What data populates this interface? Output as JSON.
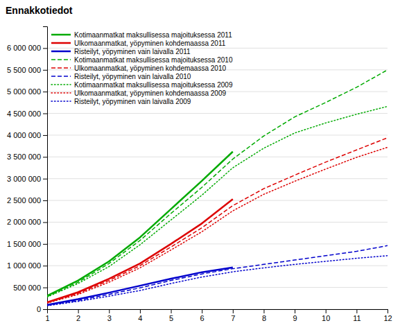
{
  "chart_data": {
    "type": "line",
    "title": "Ennakkotiedot",
    "x": [
      1,
      2,
      3,
      4,
      5,
      6,
      7,
      8,
      9,
      10,
      11,
      12
    ],
    "series": [
      {
        "name": "Kotimaanmatkat maksullisessa majoituksessa 2011",
        "color": "#00aa00",
        "line_style": "solid",
        "values": [
          310000,
          660000,
          1100000,
          1650000,
          2300000,
          2950000,
          3620000,
          null,
          null,
          null,
          null,
          null
        ]
      },
      {
        "name": "Ulkomaanmatkat, yöpyminen kohdemaassa 2011",
        "color": "#dd0000",
        "line_style": "solid",
        "values": [
          160000,
          390000,
          700000,
          1050000,
          1500000,
          1970000,
          2530000,
          null,
          null,
          null,
          null,
          null
        ]
      },
      {
        "name": "Risteilyt, yöpyminen vain laivalla 2011",
        "color": "#0000cc",
        "line_style": "solid",
        "values": [
          100000,
          230000,
          380000,
          540000,
          700000,
          850000,
          960000,
          null,
          null,
          null,
          null,
          null
        ]
      },
      {
        "name": "Kotimaanmatkat maksullisessa majoituksessa 2010",
        "color": "#00aa00",
        "line_style": "dashed",
        "values": [
          290000,
          620000,
          1050000,
          1580000,
          2200000,
          2800000,
          3450000,
          3980000,
          4420000,
          4750000,
          5100000,
          5500000
        ]
      },
      {
        "name": "Ulkomaanmatkat, yöpyminen kohdemaassa 2010",
        "color": "#dd0000",
        "line_style": "dashed",
        "values": [
          150000,
          360000,
          660000,
          1000000,
          1430000,
          1870000,
          2380000,
          2770000,
          3080000,
          3380000,
          3660000,
          3940000
        ]
      },
      {
        "name": "Risteilyt, yöpyminen vain laivalla 2010",
        "color": "#0000cc",
        "line_style": "dashed",
        "values": [
          90000,
          200000,
          340000,
          490000,
          660000,
          810000,
          930000,
          1030000,
          1130000,
          1230000,
          1330000,
          1460000
        ]
      },
      {
        "name": "Kotimaanmatkat maksullisessa majoituksessa 2009",
        "color": "#00aa00",
        "line_style": "dotted",
        "values": [
          280000,
          590000,
          980000,
          1480000,
          2050000,
          2620000,
          3250000,
          3700000,
          4050000,
          4280000,
          4480000,
          4660000
        ]
      },
      {
        "name": "Ulkomaanmatkat, yöpyminen kohdemaassa 2009",
        "color": "#dd0000",
        "line_style": "dotted",
        "values": [
          140000,
          340000,
          620000,
          950000,
          1360000,
          1780000,
          2260000,
          2640000,
          2940000,
          3220000,
          3490000,
          3720000
        ]
      },
      {
        "name": "Risteilyt, yöpyminen vain laivalla 2009",
        "color": "#0000cc",
        "line_style": "dotted",
        "values": [
          80000,
          180000,
          300000,
          430000,
          590000,
          740000,
          860000,
          950000,
          1030000,
          1100000,
          1170000,
          1230000
        ]
      }
    ],
    "xlim": [
      1,
      12
    ],
    "xticks": [
      1,
      2,
      3,
      4,
      5,
      6,
      7,
      8,
      9,
      10,
      11,
      12
    ],
    "ylim": [
      0,
      6500000
    ],
    "yticks": [
      0,
      {
        "value": 500000,
        "label": "500 000"
      },
      {
        "value": 1000000,
        "label": "1 000 000"
      },
      {
        "value": 1500000,
        "label": "1 500 000"
      },
      {
        "value": 2000000,
        "label": "2 000 000"
      },
      {
        "value": 2500000,
        "label": "2 500 000"
      },
      {
        "value": 3000000,
        "label": "3 000 000"
      },
      {
        "value": 3500000,
        "label": "3 500 000"
      },
      {
        "value": 4000000,
        "label": "4 000 000"
      },
      {
        "value": 4500000,
        "label": "4 500 000"
      },
      {
        "value": 5000000,
        "label": "5 000 000"
      },
      {
        "value": 5500000,
        "label": "5 500 000"
      },
      {
        "value": 6000000,
        "label": "6 000 000"
      }
    ],
    "grid": true,
    "legend": "upper left"
  }
}
